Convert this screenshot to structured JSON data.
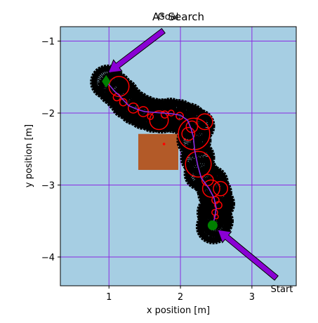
{
  "chart_data": {
    "type": "path-planning",
    "title": "A* Search",
    "xlabel": "x position [m]",
    "ylabel": "y position [m]",
    "xlim": [
      0.32,
      3.62
    ],
    "ylim": [
      -4.4,
      -0.8
    ],
    "xticks": [
      1,
      2,
      3
    ],
    "yticks": [
      -1,
      -2,
      -3,
      -4
    ],
    "xtick_labels": [
      "1",
      "2",
      "3"
    ],
    "ytick_labels": [
      "−1",
      "−2",
      "−3",
      "−4"
    ],
    "grid": true,
    "colors": {
      "background": "#a6cee3",
      "grid": "#8a2be2",
      "obstacle_zone": "#b35a28",
      "robot_footprint": "#000000",
      "search_circle": "#ff0000",
      "path": "#8a2be2",
      "arrow": "#8a00d4",
      "start_marker": "#008000",
      "goal_marker": "#008000"
    },
    "annotations": [
      {
        "text": "Goal",
        "point": [
          0.99,
          -1.44
        ],
        "text_at": [
          1.82,
          -0.72
        ]
      },
      {
        "text": "Start",
        "point": [
          2.52,
          -3.62
        ],
        "text_at": [
          3.42,
          -4.38
        ]
      }
    ],
    "start": [
      2.45,
      -3.56
    ],
    "goal": [
      0.96,
      -1.56
    ],
    "obstacle_zone": {
      "x": [
        1.41,
        1.97
      ],
      "y": [
        -2.79,
        -2.29
      ]
    },
    "obstacle_point": [
      1.77,
      -2.43
    ],
    "path": [
      [
        2.45,
        -3.56
      ],
      [
        2.48,
        -3.45
      ],
      [
        2.5,
        -3.32
      ],
      [
        2.47,
        -3.18
      ],
      [
        2.4,
        -3.05
      ],
      [
        2.29,
        -2.9
      ],
      [
        2.24,
        -2.72
      ],
      [
        2.2,
        -2.52
      ],
      [
        2.18,
        -2.33
      ],
      [
        2.15,
        -2.22
      ],
      [
        2.1,
        -2.1
      ],
      [
        2.0,
        -2.03
      ],
      [
        1.88,
        -2.01
      ],
      [
        1.76,
        -2.0
      ],
      [
        1.62,
        -1.99
      ],
      [
        1.5,
        -1.98
      ],
      [
        1.4,
        -1.95
      ],
      [
        1.28,
        -1.9
      ],
      [
        1.2,
        -1.82
      ],
      [
        1.14,
        -1.75
      ],
      [
        1.08,
        -1.7
      ],
      [
        1.03,
        -1.64
      ],
      [
        0.96,
        -1.56
      ]
    ],
    "footprints": [
      [
        0.98,
        -1.57
      ],
      [
        1.08,
        -1.66
      ],
      [
        1.18,
        -1.75
      ],
      [
        1.26,
        -1.85
      ],
      [
        1.37,
        -1.93
      ],
      [
        1.49,
        -1.99
      ],
      [
        1.62,
        -2.03
      ],
      [
        1.74,
        -2.04
      ],
      [
        1.86,
        -2.03
      ],
      [
        1.98,
        -2.05
      ],
      [
        2.12,
        -2.1
      ],
      [
        2.24,
        -2.18
      ],
      [
        2.19,
        -2.38
      ],
      [
        2.24,
        -2.62
      ],
      [
        2.29,
        -2.84
      ],
      [
        2.43,
        -2.97
      ],
      [
        2.48,
        -3.11
      ],
      [
        2.52,
        -3.26
      ],
      [
        2.47,
        -3.38
      ],
      [
        2.5,
        -3.5
      ],
      [
        2.46,
        -3.58
      ]
    ],
    "search_circles": [
      {
        "center": [
          1.14,
          -1.63
        ],
        "r": 0.14
      },
      {
        "center": [
          1.11,
          -1.78
        ],
        "r": 0.05
      },
      {
        "center": [
          1.2,
          -1.85
        ],
        "r": 0.05
      },
      {
        "center": [
          1.34,
          -1.93
        ],
        "r": 0.07
      },
      {
        "center": [
          1.48,
          -1.98
        ],
        "r": 0.07
      },
      {
        "center": [
          1.58,
          -2.05
        ],
        "r": 0.04
      },
      {
        "center": [
          1.7,
          -2.1
        ],
        "r": 0.13
      },
      {
        "center": [
          1.78,
          -2.02
        ],
        "r": 0.05
      },
      {
        "center": [
          1.87,
          -2.0
        ],
        "r": 0.04
      },
      {
        "center": [
          1.99,
          -2.04
        ],
        "r": 0.05
      },
      {
        "center": [
          2.16,
          -2.19
        ],
        "r": 0.08
      },
      {
        "center": [
          2.11,
          -2.29
        ],
        "r": 0.09
      },
      {
        "center": [
          2.19,
          -2.29
        ],
        "r": 0.22
      },
      {
        "center": [
          2.34,
          -2.12
        ],
        "r": 0.11
      },
      {
        "center": [
          2.25,
          -2.71
        ],
        "r": 0.18
      },
      {
        "center": [
          2.38,
          -2.93
        ],
        "r": 0.08
      },
      {
        "center": [
          2.43,
          -3.05
        ],
        "r": 0.12
      },
      {
        "center": [
          2.56,
          -3.05
        ],
        "r": 0.1
      },
      {
        "center": [
          2.49,
          -3.21
        ],
        "r": 0.05
      },
      {
        "center": [
          2.53,
          -3.28
        ],
        "r": 0.05
      },
      {
        "center": [
          2.48,
          -3.38
        ],
        "r": 0.04
      },
      {
        "center": [
          2.5,
          -3.44
        ],
        "r": 0.03
      }
    ]
  }
}
